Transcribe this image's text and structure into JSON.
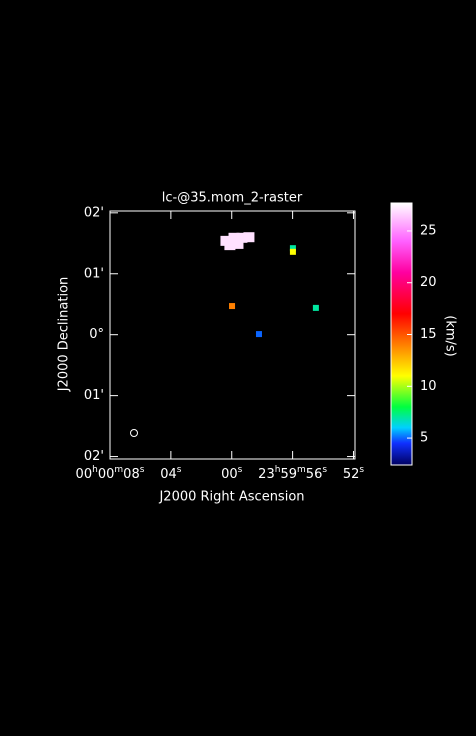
{
  "chart_data": {
    "type": "raster",
    "title": "lc-@35.mom_2-raster",
    "xlabel": "J2000 Right Ascension",
    "ylabel": "J2000 Declination",
    "xlim": [
      8.0,
      -8.1
    ],
    "ylim": [
      -2.04,
      2.03
    ],
    "xticks": [
      {
        "value": 8,
        "label": "00h00m08s"
      },
      {
        "value": 4,
        "label": "04s"
      },
      {
        "value": 0,
        "label": "00s"
      },
      {
        "value": -4,
        "label": "23h59m56s"
      },
      {
        "value": -8,
        "label": "52s"
      }
    ],
    "yticks": [
      {
        "value": 2,
        "label": "02'"
      },
      {
        "value": 1,
        "label": "01'"
      },
      {
        "value": 0,
        "label": "0°"
      },
      {
        "value": -1,
        "label": "01'"
      },
      {
        "value": -2,
        "label": "02'"
      }
    ],
    "x": [
      0.38,
      -0.15,
      -0.67,
      -1.13,
      0.12,
      -0.41,
      -4.02,
      -4.02,
      -0.02,
      -1.79,
      -5.53
    ],
    "y": [
      1.54,
      1.59,
      1.59,
      1.6,
      1.47,
      1.49,
      1.42,
      1.36,
      0.47,
      0.01,
      0.44
    ],
    "values": [
      27,
      27,
      27,
      27,
      27,
      27,
      7,
      11,
      14,
      5,
      7
    ],
    "colorbar_label": "(km/s)",
    "clim": [
      2.4,
      27.7
    ],
    "cticks": [
      5,
      10,
      15,
      20,
      25
    ],
    "colormap": [
      [
        2.4,
        "#000060"
      ],
      [
        4.5,
        "#1030ff"
      ],
      [
        6,
        "#00d0ff"
      ],
      [
        8,
        "#00ff40"
      ],
      [
        11,
        "#ffff00"
      ],
      [
        14,
        "#ff8000"
      ],
      [
        17,
        "#ff0000"
      ],
      [
        21,
        "#ff00a0"
      ],
      [
        24,
        "#ff60ff"
      ],
      [
        27.7,
        "#ffffff"
      ]
    ]
  }
}
